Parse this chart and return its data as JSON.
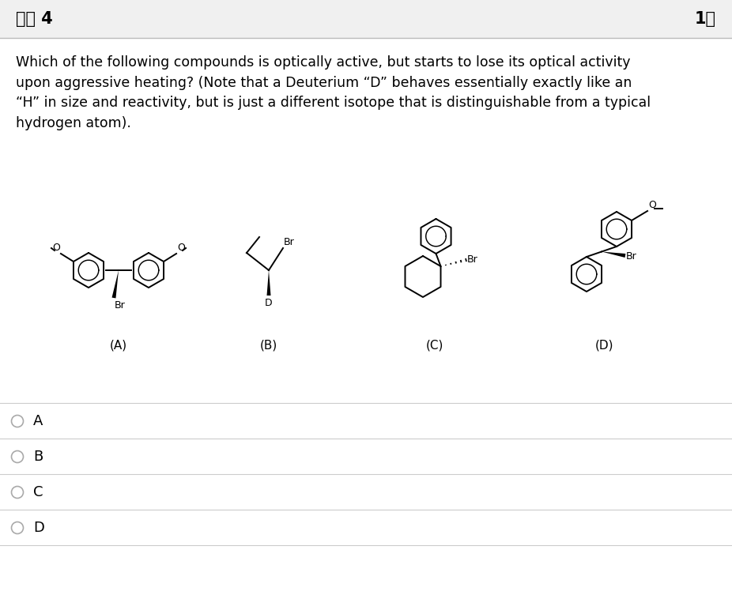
{
  "title_left": "질문 4",
  "title_right": "1점",
  "header_bg": "#f0f0f0",
  "bg_color": "#ffffff",
  "question_text": "Which of the following compounds is optically active, but starts to lose its optical activity\nupon aggressive heating? (Note that a Deuterium “D” behaves essentially exactly like an\n“H” in size and reactivity, but is just a different isotope that is distinguishable from a typical\nhydrogen atom).",
  "options": [
    "A",
    "B",
    "C",
    "D"
  ],
  "labels": [
    "(A)",
    "(B)",
    "(C)",
    "(D)"
  ],
  "font_size_title": 15,
  "font_size_question": 12.5,
  "font_size_options": 13,
  "font_size_labels": 11,
  "line_color": "#cccccc",
  "text_color": "#000000",
  "header_line_color": "#bbbbbb"
}
